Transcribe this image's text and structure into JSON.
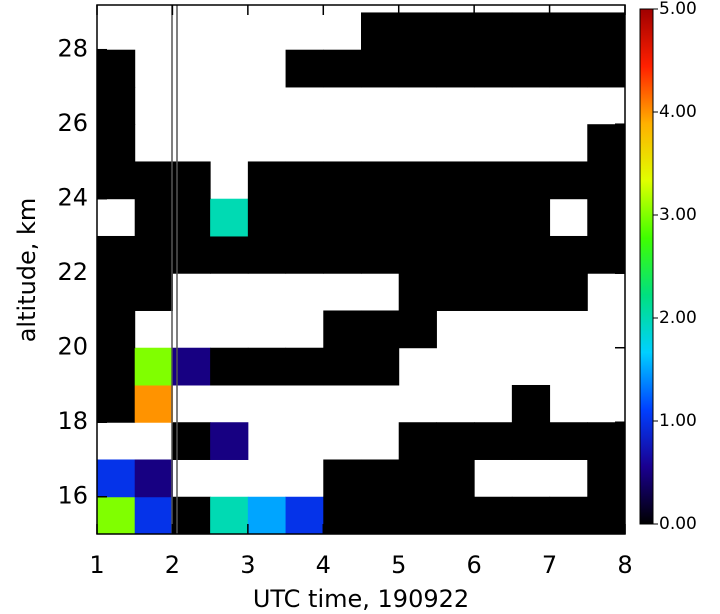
{
  "chart_data": {
    "type": "heatmap",
    "x_label": "UTC time, 190922",
    "y_label": "altitude, km",
    "xlim": [
      1,
      8
    ],
    "ylim": [
      15,
      29.2
    ],
    "xticks": [
      1,
      2,
      3,
      4,
      5,
      6,
      7,
      8
    ],
    "yticks": [
      16,
      18,
      20,
      22,
      24,
      26,
      28
    ],
    "xbins": [
      1,
      1.5,
      2,
      2.5,
      3,
      3.5,
      4,
      4.5,
      5,
      5.5,
      6,
      6.5,
      7,
      7.5,
      8
    ],
    "ybins": [
      15,
      16,
      17,
      18,
      19,
      20,
      21,
      22,
      23,
      24,
      25,
      26,
      27,
      28,
      29
    ],
    "z": [
      [
        3,
        1,
        0,
        2,
        1.5,
        1,
        0,
        0,
        0,
        0,
        0,
        0,
        0,
        0
      ],
      [
        1,
        0.5,
        null,
        null,
        null,
        null,
        0,
        0,
        0,
        0,
        null,
        null,
        null,
        0
      ],
      [
        null,
        null,
        0,
        0.5,
        null,
        null,
        null,
        null,
        0,
        0,
        0,
        0,
        0,
        0
      ],
      [
        0,
        4,
        null,
        null,
        null,
        null,
        null,
        null,
        null,
        null,
        null,
        0,
        null,
        null
      ],
      [
        0,
        3,
        0.5,
        0,
        0,
        0,
        0,
        0,
        null,
        null,
        null,
        null,
        null,
        null
      ],
      [
        0,
        null,
        null,
        null,
        null,
        null,
        0,
        0,
        0,
        null,
        null,
        null,
        null,
        null
      ],
      [
        0,
        0,
        null,
        null,
        null,
        null,
        null,
        null,
        0,
        0,
        0,
        0,
        0,
        null
      ],
      [
        0,
        0,
        0,
        0,
        0,
        0,
        0,
        0,
        0,
        0,
        0,
        0,
        0,
        0
      ],
      [
        null,
        0,
        0,
        2,
        0,
        0,
        0,
        0,
        0,
        0,
        0,
        0,
        null,
        0
      ],
      [
        0,
        0,
        0,
        null,
        0,
        0,
        0,
        0,
        0,
        0,
        0,
        0,
        0,
        0
      ],
      [
        0,
        null,
        null,
        null,
        null,
        null,
        null,
        null,
        null,
        null,
        null,
        null,
        null,
        0
      ],
      [
        0,
        null,
        null,
        null,
        null,
        null,
        null,
        null,
        null,
        null,
        null,
        null,
        null,
        null
      ],
      [
        0,
        null,
        null,
        null,
        null,
        0,
        0,
        0,
        0,
        0,
        0,
        0,
        0,
        0
      ],
      [
        null,
        null,
        null,
        null,
        null,
        null,
        null,
        0,
        0,
        0,
        0,
        0,
        0,
        0
      ]
    ],
    "clim": [
      0,
      5
    ],
    "cticks": [
      {
        "value": 0,
        "label": "0.00"
      },
      {
        "value": 1,
        "label": "1.00"
      },
      {
        "value": 2,
        "label": "2.00"
      },
      {
        "value": 3,
        "label": "3.00"
      },
      {
        "value": 4,
        "label": "4.00"
      },
      {
        "value": 5,
        "label": "5.00"
      }
    ],
    "colorscale": [
      "#000000",
      "#1a0090",
      "#0040ff",
      "#00d0ff",
      "#00e080",
      "#40ff00",
      "#e0ff00",
      "#ffb000",
      "#ff2000",
      "#a00000"
    ]
  }
}
